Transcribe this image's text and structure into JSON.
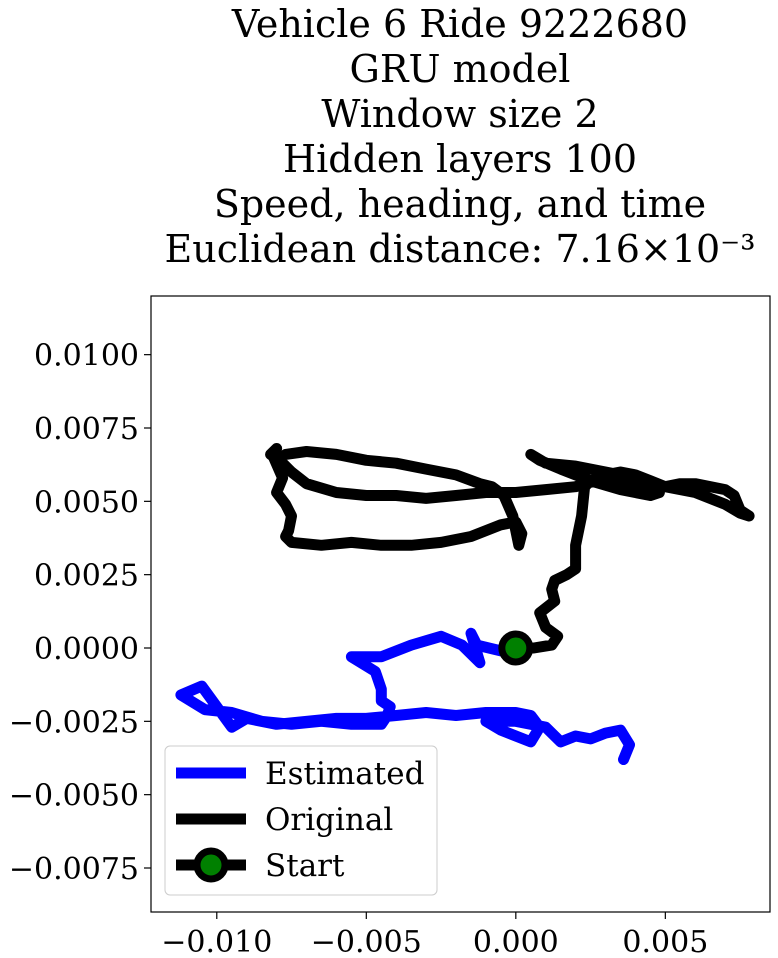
{
  "chart_data": {
    "type": "line",
    "title_lines": [
      "Vehicle 6 Ride 9222680",
      "GRU model",
      "Window size 2",
      "Hidden layers 100",
      "Speed, heading, and time",
      "Euclidean distance: 7.16×10⁻³"
    ],
    "xlim": [
      -0.0122,
      0.0085
    ],
    "ylim": [
      -0.009,
      0.012
    ],
    "xticks": [
      {
        "value": -0.01,
        "label": "−0.010"
      },
      {
        "value": -0.005,
        "label": "−0.005"
      },
      {
        "value": 0.0,
        "label": "0.000"
      },
      {
        "value": 0.005,
        "label": "0.005"
      }
    ],
    "yticks": [
      {
        "value": 0.01,
        "label": "0.0100"
      },
      {
        "value": 0.0075,
        "label": "0.0075"
      },
      {
        "value": 0.005,
        "label": "0.0050"
      },
      {
        "value": 0.0025,
        "label": "0.0025"
      },
      {
        "value": 0.0,
        "label": "0.0000"
      },
      {
        "value": -0.0025,
        "label": "−0.0025"
      },
      {
        "value": -0.005,
        "label": "−0.0050"
      },
      {
        "value": -0.0075,
        "label": "−0.0075"
      }
    ],
    "grid": false,
    "legend_position": "lower-left",
    "series": [
      {
        "name": "Estimated",
        "color": "#0000ff",
        "x": [
          0.0,
          -0.0005,
          -0.0013,
          -0.0015,
          -0.0012,
          -0.0018,
          -0.0025,
          -0.0035,
          -0.0045,
          -0.0055,
          -0.0047,
          -0.0045,
          -0.0045,
          -0.0042,
          -0.0043,
          -0.0045,
          -0.0055,
          -0.0065,
          -0.0075,
          -0.0085,
          -0.0095,
          -0.0104,
          -0.0112,
          -0.0105,
          -0.0095,
          -0.009,
          -0.008,
          -0.007,
          -0.006,
          -0.005,
          -0.004,
          -0.003,
          -0.002,
          -0.001,
          0.0,
          0.0005,
          0.0008,
          0.0005,
          -0.0005,
          -0.001,
          0.0,
          0.001,
          0.0015,
          0.002,
          0.0025,
          0.003,
          0.0035,
          0.0038,
          0.0036
        ],
        "y": [
          0.0,
          -0.0001,
          0.0001,
          0.0005,
          -0.0005,
          0.0001,
          0.0004,
          0.0001,
          -0.0003,
          -0.0003,
          -0.0008,
          -0.0014,
          -0.0018,
          -0.002,
          -0.0023,
          -0.0026,
          -0.0026,
          -0.0025,
          -0.0026,
          -0.0025,
          -0.0022,
          -0.0021,
          -0.0016,
          -0.0013,
          -0.0027,
          -0.0024,
          -0.0026,
          -0.0025,
          -0.0024,
          -0.0024,
          -0.0023,
          -0.0022,
          -0.0023,
          -0.0022,
          -0.0022,
          -0.0023,
          -0.0027,
          -0.0032,
          -0.0028,
          -0.0025,
          -0.0025,
          -0.0027,
          -0.0032,
          -0.003,
          -0.0031,
          -0.0029,
          -0.0028,
          -0.0033,
          -0.0038
        ]
      },
      {
        "name": "Original",
        "color": "#000000",
        "x": [
          0.0,
          0.0006,
          0.0012,
          0.0014,
          0.001,
          0.0008,
          0.0013,
          0.0012,
          0.0013,
          0.0017,
          0.002,
          0.002,
          0.0022,
          0.0023,
          0.0025,
          0.003,
          0.0035,
          0.004,
          0.0045,
          0.005,
          0.0055,
          0.006,
          0.0065,
          0.007,
          0.0073,
          0.0075,
          0.0078,
          0.0075,
          0.007,
          0.006,
          0.005,
          0.004,
          0.003,
          0.002,
          0.001,
          0.0005,
          0.0008,
          0.0015,
          0.0025,
          0.0035,
          0.0045,
          0.0048,
          0.004,
          0.003,
          0.002,
          0.001,
          0.0,
          -0.001,
          -0.002,
          -0.003,
          -0.004,
          -0.005,
          -0.006,
          -0.007,
          -0.0075,
          -0.0078,
          -0.0082,
          -0.008,
          -0.0081,
          -0.0078,
          -0.008,
          -0.0077,
          -0.0075,
          -0.0076,
          -0.0077,
          -0.0075,
          -0.0065,
          -0.0055,
          -0.0045,
          -0.0035,
          -0.0025,
          -0.0015,
          -0.0005,
          0.0,
          0.0002,
          0.0001,
          -0.0001,
          -0.0004,
          -0.0008,
          -0.0012,
          -0.002,
          -0.003,
          -0.004,
          -0.005,
          -0.006,
          -0.007,
          -0.0077
        ],
        "y": [
          0.0,
          0.0,
          0.0001,
          0.0004,
          0.0007,
          0.0012,
          0.0016,
          0.002,
          0.0023,
          0.0025,
          0.0027,
          0.0035,
          0.0045,
          0.0055,
          0.0057,
          0.0059,
          0.006,
          0.0059,
          0.0057,
          0.0055,
          0.0056,
          0.0056,
          0.0055,
          0.0054,
          0.0052,
          0.0047,
          0.0045,
          0.0046,
          0.0049,
          0.0053,
          0.0055,
          0.0058,
          0.006,
          0.0062,
          0.0063,
          0.0066,
          0.0064,
          0.0061,
          0.0057,
          0.0054,
          0.0052,
          0.0053,
          0.0056,
          0.0058,
          0.0055,
          0.0054,
          0.0053,
          0.0053,
          0.0052,
          0.0051,
          0.0052,
          0.0052,
          0.0053,
          0.0056,
          0.006,
          0.0063,
          0.0066,
          0.0068,
          0.0065,
          0.0058,
          0.0053,
          0.0049,
          0.0045,
          0.004,
          0.0038,
          0.0036,
          0.0035,
          0.0036,
          0.0035,
          0.0035,
          0.0036,
          0.0038,
          0.0042,
          0.0043,
          0.0039,
          0.0035,
          0.0045,
          0.0052,
          0.0055,
          0.0056,
          0.0059,
          0.0061,
          0.0063,
          0.0064,
          0.0066,
          0.0067,
          0.0066
        ]
      }
    ],
    "start_point": {
      "name": "Start",
      "x": 0.0,
      "y": 0.0,
      "marker_face": "#008000",
      "marker_edge": "#000000"
    },
    "legend": [
      "Estimated",
      "Original",
      "Start"
    ]
  }
}
